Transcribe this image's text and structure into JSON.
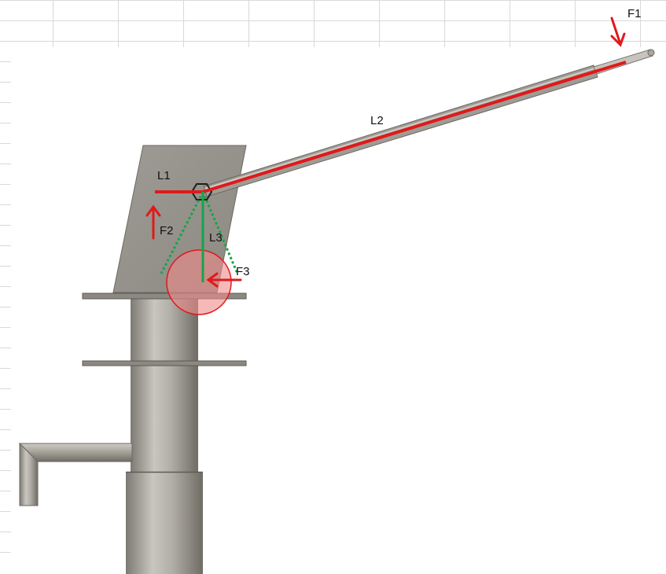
{
  "labels": {
    "f1": "F1",
    "l2": "L2",
    "l1": "L1",
    "f2": "F2",
    "l3": "L3",
    "f3": "F3"
  },
  "colors": {
    "force": "#e0191b",
    "lever": "#e0191b",
    "perpendicular": "#17a34a",
    "pivot_zone_fill": "#f08a8a",
    "pivot_zone_stroke": "#e0191b",
    "metal": "#a8a59d",
    "grid": "#d9d9d9"
  },
  "icons": {
    "pivot": "hex-nut-icon",
    "force_arrow": "arrow-icon"
  }
}
